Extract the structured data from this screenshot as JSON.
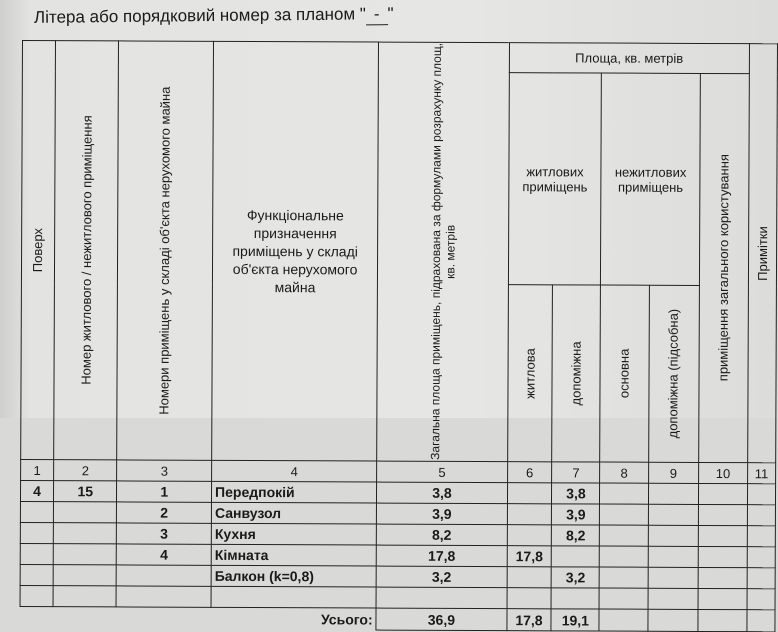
{
  "title": {
    "text": "Літера або порядковий номер за планом \"",
    "letter": "-",
    "close": "\""
  },
  "headers": {
    "floor": "Поверх",
    "unit_number": "Номер житлового / нежитлового приміщення",
    "room_numbers": "Номери приміщень у складі об'єкта нерухомого майна",
    "function": "Функціональне призначення приміщень у складі об'єкта нерухомого майна",
    "total_area": "Загальна площа приміщень, підрахована за формулами розрахунку площ, кв. метрів",
    "area": "Площа, кв. метрів",
    "residential": "житлових приміщень",
    "nonresidential": "нежитлових приміщень",
    "common": "приміщення загального користування",
    "living": "житлова",
    "auxiliary": "допоміжна",
    "main": "основна",
    "auxiliary_utility": "допоміжна (підсобна)",
    "notes": "Примітки"
  },
  "column_numbers": [
    "1",
    "2",
    "3",
    "4",
    "5",
    "6",
    "7",
    "8",
    "9",
    "10",
    "11"
  ],
  "rows": [
    [
      "4",
      "15",
      "1",
      "Передпокій",
      "3,8",
      "",
      "3,8",
      "",
      "",
      "",
      ""
    ],
    [
      "",
      "",
      "2",
      "Санвузол",
      "3,9",
      "",
      "3,9",
      "",
      "",
      "",
      ""
    ],
    [
      "",
      "",
      "3",
      "Кухня",
      "8,2",
      "",
      "8,2",
      "",
      "",
      "",
      ""
    ],
    [
      "",
      "",
      "4",
      "Кімната",
      "17,8",
      "17,8",
      "",
      "",
      "",
      "",
      ""
    ],
    [
      "",
      "",
      "",
      "Балкон (k=0,8)",
      "3,2",
      "",
      "3,2",
      "",
      "",
      "",
      ""
    ],
    [
      "",
      "",
      "",
      "",
      "",
      "",
      "",
      "",
      "",
      "",
      ""
    ]
  ],
  "totals": {
    "label": "Усього:",
    "values": [
      "36,9",
      "17,8",
      "19,1",
      "",
      "",
      "",
      ""
    ]
  }
}
